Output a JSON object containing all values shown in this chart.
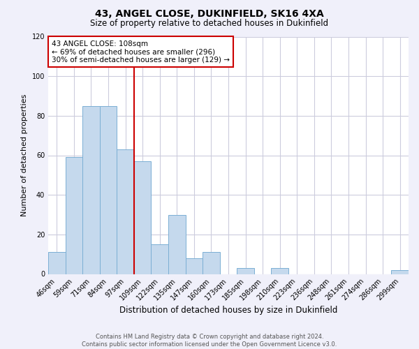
{
  "title": "43, ANGEL CLOSE, DUKINFIELD, SK16 4XA",
  "subtitle": "Size of property relative to detached houses in Dukinfield",
  "xlabel": "Distribution of detached houses by size in Dukinfield",
  "ylabel": "Number of detached properties",
  "categories": [
    "46sqm",
    "59sqm",
    "71sqm",
    "84sqm",
    "97sqm",
    "109sqm",
    "122sqm",
    "135sqm",
    "147sqm",
    "160sqm",
    "173sqm",
    "185sqm",
    "198sqm",
    "210sqm",
    "223sqm",
    "236sqm",
    "248sqm",
    "261sqm",
    "274sqm",
    "286sqm",
    "299sqm"
  ],
  "values": [
    11,
    59,
    85,
    85,
    63,
    57,
    15,
    30,
    8,
    11,
    0,
    3,
    0,
    3,
    0,
    0,
    0,
    0,
    0,
    0,
    2
  ],
  "bar_color": "#c5d9ed",
  "bar_edge_color": "#7bafd4",
  "vline_x_idx": 5,
  "vline_color": "#cc0000",
  "annotation_text": "43 ANGEL CLOSE: 108sqm\n← 69% of detached houses are smaller (296)\n30% of semi-detached houses are larger (129) →",
  "annotation_box_color": "#ffffff",
  "annotation_box_edge_color": "#cc0000",
  "ylim": [
    0,
    120
  ],
  "yticks": [
    0,
    20,
    40,
    60,
    80,
    100,
    120
  ],
  "footer_line1": "Contains HM Land Registry data © Crown copyright and database right 2024.",
  "footer_line2": "Contains public sector information licensed under the Open Government Licence v3.0.",
  "background_color": "#f0f0fa",
  "plot_background_color": "#ffffff",
  "grid_color": "#ccccdd",
  "title_fontsize": 10,
  "subtitle_fontsize": 8.5,
  "xlabel_fontsize": 8.5,
  "ylabel_fontsize": 8,
  "tick_fontsize": 7,
  "footer_fontsize": 6,
  "annotation_fontsize": 7.5
}
